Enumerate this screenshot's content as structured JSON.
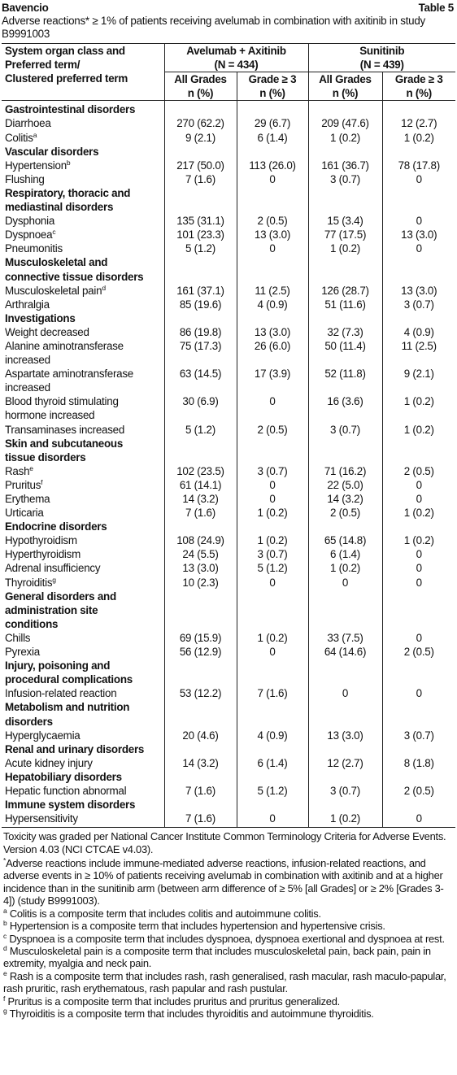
{
  "header": {
    "product": "Bavencio",
    "table_no": "Table 5",
    "caption": "Adverse reactions* ≥ 1% of patients receiving avelumab in combination with axitinib in study B9991003"
  },
  "table": {
    "head": {
      "first_col": [
        "System organ class and",
        "Preferred term/",
        "Clustered preferred term"
      ],
      "groups": [
        {
          "name": "Avelumab + Axitinib",
          "n": "(N = 434)"
        },
        {
          "name": "Sunitinib",
          "n": "(N = 439)"
        }
      ],
      "sub": [
        [
          "All Grades",
          "n (%)"
        ],
        [
          "Grade ≥ 3",
          "n (%)"
        ],
        [
          "All Grades",
          "n (%)"
        ],
        [
          "Grade ≥ 3",
          "n (%)"
        ]
      ]
    },
    "rows": [
      {
        "category": "Gastrointestinal disorders"
      },
      {
        "term": "Diarrhoea",
        "values": [
          "270 (62.2)",
          "29 (6.7)",
          "209 (47.6)",
          "12 (2.7)"
        ]
      },
      {
        "term": "Colitis",
        "sup": "a",
        "values": [
          "9 (2.1)",
          "6 (1.4)",
          "1 (0.2)",
          "1 (0.2)"
        ]
      },
      {
        "category": "Vascular disorders"
      },
      {
        "term": "Hypertension",
        "sup": "b",
        "values": [
          "217 (50.0)",
          "113 (26.0)",
          "161 (36.7)",
          "78 (17.8)"
        ]
      },
      {
        "term": "Flushing",
        "values": [
          "7 (1.6)",
          "0",
          "3 (0.7)",
          "0"
        ]
      },
      {
        "category": "Respiratory, thoracic and mediastinal disorders"
      },
      {
        "term": "Dysphonia",
        "values": [
          "135 (31.1)",
          "2 (0.5)",
          "15 (3.4)",
          "0"
        ]
      },
      {
        "term": "Dyspnoea",
        "sup": "c",
        "values": [
          "101 (23.3)",
          "13 (3.0)",
          "77 (17.5)",
          "13 (3.0)"
        ]
      },
      {
        "term": "Pneumonitis",
        "values": [
          "5 (1.2)",
          "0",
          "1 (0.2)",
          "0"
        ]
      },
      {
        "category": "Musculoskeletal and connective tissue disorders"
      },
      {
        "term": "Musculoskeletal pain",
        "sup": "d",
        "values": [
          "161 (37.1)",
          "11 (2.5)",
          "126 (28.7)",
          "13 (3.0)"
        ]
      },
      {
        "term": "Arthralgia",
        "values": [
          "85 (19.6)",
          "4 (0.9)",
          "51 (11.6)",
          "3 (0.7)"
        ]
      },
      {
        "category": "Investigations"
      },
      {
        "term": "Weight decreased",
        "values": [
          "86 (19.8)",
          "13 (3.0)",
          "32 (7.3)",
          "4 (0.9)"
        ]
      },
      {
        "term": "Alanine aminotransferase increased",
        "values": [
          "75 (17.3)",
          "26 (6.0)",
          "50 (11.4)",
          "11 (2.5)"
        ]
      },
      {
        "term": "Aspartate aminotransferase increased",
        "values": [
          "63 (14.5)",
          "17 (3.9)",
          "52 (11.8)",
          "9 (2.1)"
        ]
      },
      {
        "term": "Blood thyroid stimulating hormone increased",
        "values": [
          "30 (6.9)",
          "0",
          "16 (3.6)",
          "1 (0.2)"
        ]
      },
      {
        "term": "Transaminases increased",
        "values": [
          "5 (1.2)",
          "2 (0.5)",
          "3 (0.7)",
          "1 (0.2)"
        ]
      },
      {
        "category": "Skin and subcutaneous tissue disorders"
      },
      {
        "term": "Rash",
        "sup": "e",
        "values": [
          "102 (23.5)",
          "3 (0.7)",
          "71 (16.2)",
          "2 (0.5)"
        ]
      },
      {
        "term": "Pruritus",
        "sup": "f",
        "values": [
          "61 (14.1)",
          "0",
          "22 (5.0)",
          "0"
        ]
      },
      {
        "term": "Erythema",
        "values": [
          "14 (3.2)",
          "0",
          "14 (3.2)",
          "0"
        ]
      },
      {
        "term": "Urticaria",
        "values": [
          "7 (1.6)",
          "1 (0.2)",
          "2 (0.5)",
          "1 (0.2)"
        ]
      },
      {
        "category": "Endocrine disorders"
      },
      {
        "term": "Hypothyroidism",
        "values": [
          "108 (24.9)",
          "1 (0.2)",
          "65 (14.8)",
          "1 (0.2)"
        ]
      },
      {
        "term": "Hyperthyroidism",
        "values": [
          "24 (5.5)",
          "3 (0.7)",
          "6 (1.4)",
          "0"
        ]
      },
      {
        "term": "Adrenal insufficiency",
        "values": [
          "13 (3.0)",
          "5 (1.2)",
          "1 (0.2)",
          "0"
        ]
      },
      {
        "term": "Thyroiditis",
        "sup": "g",
        "values": [
          "10 (2.3)",
          "0",
          "0",
          "0"
        ]
      },
      {
        "category": "General disorders and administration site conditions"
      },
      {
        "term": "Chills",
        "values": [
          "69 (15.9)",
          "1 (0.2)",
          "33 (7.5)",
          "0"
        ]
      },
      {
        "term": "Pyrexia",
        "values": [
          "56 (12.9)",
          "0",
          "64 (14.6)",
          "2 (0.5)"
        ]
      },
      {
        "category": "Injury, poisoning and procedural complications"
      },
      {
        "term": "Infusion-related reaction",
        "values": [
          "53 (12.2)",
          "7 (1.6)",
          "0",
          "0"
        ]
      },
      {
        "category": "Metabolism and nutrition disorders"
      },
      {
        "term": "Hyperglycaemia",
        "values": [
          "20 (4.6)",
          "4 (0.9)",
          "13 (3.0)",
          "3 (0.7)"
        ]
      },
      {
        "category": "Renal and urinary disorders"
      },
      {
        "term": "Acute kidney injury",
        "values": [
          "14 (3.2)",
          "6 (1.4)",
          "12 (2.7)",
          "8 (1.8)"
        ]
      },
      {
        "category": "Hepatobiliary disorders"
      },
      {
        "term": "Hepatic function abnormal",
        "values": [
          "7 (1.6)",
          "5 (1.2)",
          "3 (0.7)",
          "2 (0.5)"
        ]
      },
      {
        "category": "Immune system disorders"
      },
      {
        "term": "Hypersensitivity",
        "values": [
          "7 (1.6)",
          "0",
          "1 (0.2)",
          "0"
        ]
      }
    ]
  },
  "footnotes": [
    {
      "text": "Toxicity was graded per National Cancer Institute Common Terminology Criteria for Adverse Events. Version 4.03 (NCI CTCAE v4.03)."
    },
    {
      "mark": "*",
      "text": "Adverse reactions include immune-mediated adverse reactions, infusion-related reactions, and adverse events in ≥ 10% of patients receiving avelumab in combination with axitinib and at a higher incidence than in the sunitinib arm (between arm difference of ≥ 5% [all Grades] or ≥ 2% [Grades 3-4]) (study B9991003)."
    },
    {
      "mark": "a",
      "text": "Colitis is a composite term that includes colitis and autoimmune colitis."
    },
    {
      "mark": "b",
      "text": "Hypertension is a composite term that includes hypertension and hypertensive crisis."
    },
    {
      "mark": "c",
      "text": "Dyspnoea is a composite term that includes dyspnoea, dyspnoea exertional and dyspnoea at rest."
    },
    {
      "mark": "d",
      "text": "Musculoskeletal pain is a composite term that includes musculoskeletal pain, back pain, pain in extremity, myalgia and neck pain."
    },
    {
      "mark": "e",
      "text": "Rash is a composite term that includes rash, rash generalised, rash macular, rash maculo-papular, rash pruritic, rash erythematous, rash papular and rash pustular."
    },
    {
      "mark": "f",
      "text": "Pruritus is a composite term that includes pruritus and pruritus generalized."
    },
    {
      "mark": "g",
      "text": "Thyroiditis is a composite term that includes thyroiditis and autoimmune thyroiditis."
    }
  ]
}
